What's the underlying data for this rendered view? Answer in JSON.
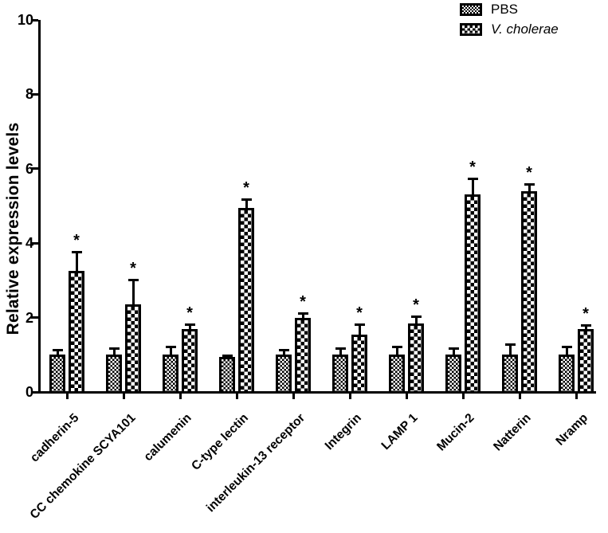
{
  "figure": {
    "kind": "grouped-bar-figure",
    "background": "#ffffff",
    "ink_color": "#000000",
    "significance_marker": "*"
  },
  "chart_data": {
    "type": "bar",
    "title": "",
    "xlabel": "",
    "ylabel": "Relative expression levels",
    "ylim": [
      0,
      10
    ],
    "yticks": [
      0,
      2,
      4,
      6,
      8,
      10
    ],
    "grid": false,
    "legend_position": "top-right",
    "categories": [
      "cadherin-5",
      "CC chemokine SCYA101",
      "calumenin",
      "C-type lectin",
      "interleukin-13 receptor",
      "Integrin",
      "LAMP 1",
      "Mucin-2",
      "Natterin",
      "Nramp"
    ],
    "series": [
      {
        "name": "PBS",
        "pattern": "fine-checkerboard",
        "values": [
          1.0,
          1.0,
          1.0,
          0.95,
          1.0,
          1.0,
          1.0,
          1.0,
          1.0,
          1.0
        ],
        "errors": [
          0.15,
          0.2,
          0.25,
          0.05,
          0.15,
          0.2,
          0.25,
          0.2,
          0.3,
          0.25
        ],
        "significant": [
          false,
          false,
          false,
          false,
          false,
          false,
          false,
          false,
          false,
          false
        ]
      },
      {
        "name": "V. cholerae",
        "italic": true,
        "pattern": "coarse-checkerboard",
        "values": [
          3.25,
          2.35,
          1.7,
          4.95,
          2.0,
          1.55,
          1.85,
          5.3,
          5.4,
          1.7
        ],
        "errors": [
          0.55,
          0.7,
          0.15,
          0.25,
          0.15,
          0.3,
          0.2,
          0.45,
          0.2,
          0.12
        ],
        "significant": [
          true,
          true,
          true,
          true,
          true,
          true,
          true,
          true,
          true,
          true
        ]
      }
    ]
  }
}
